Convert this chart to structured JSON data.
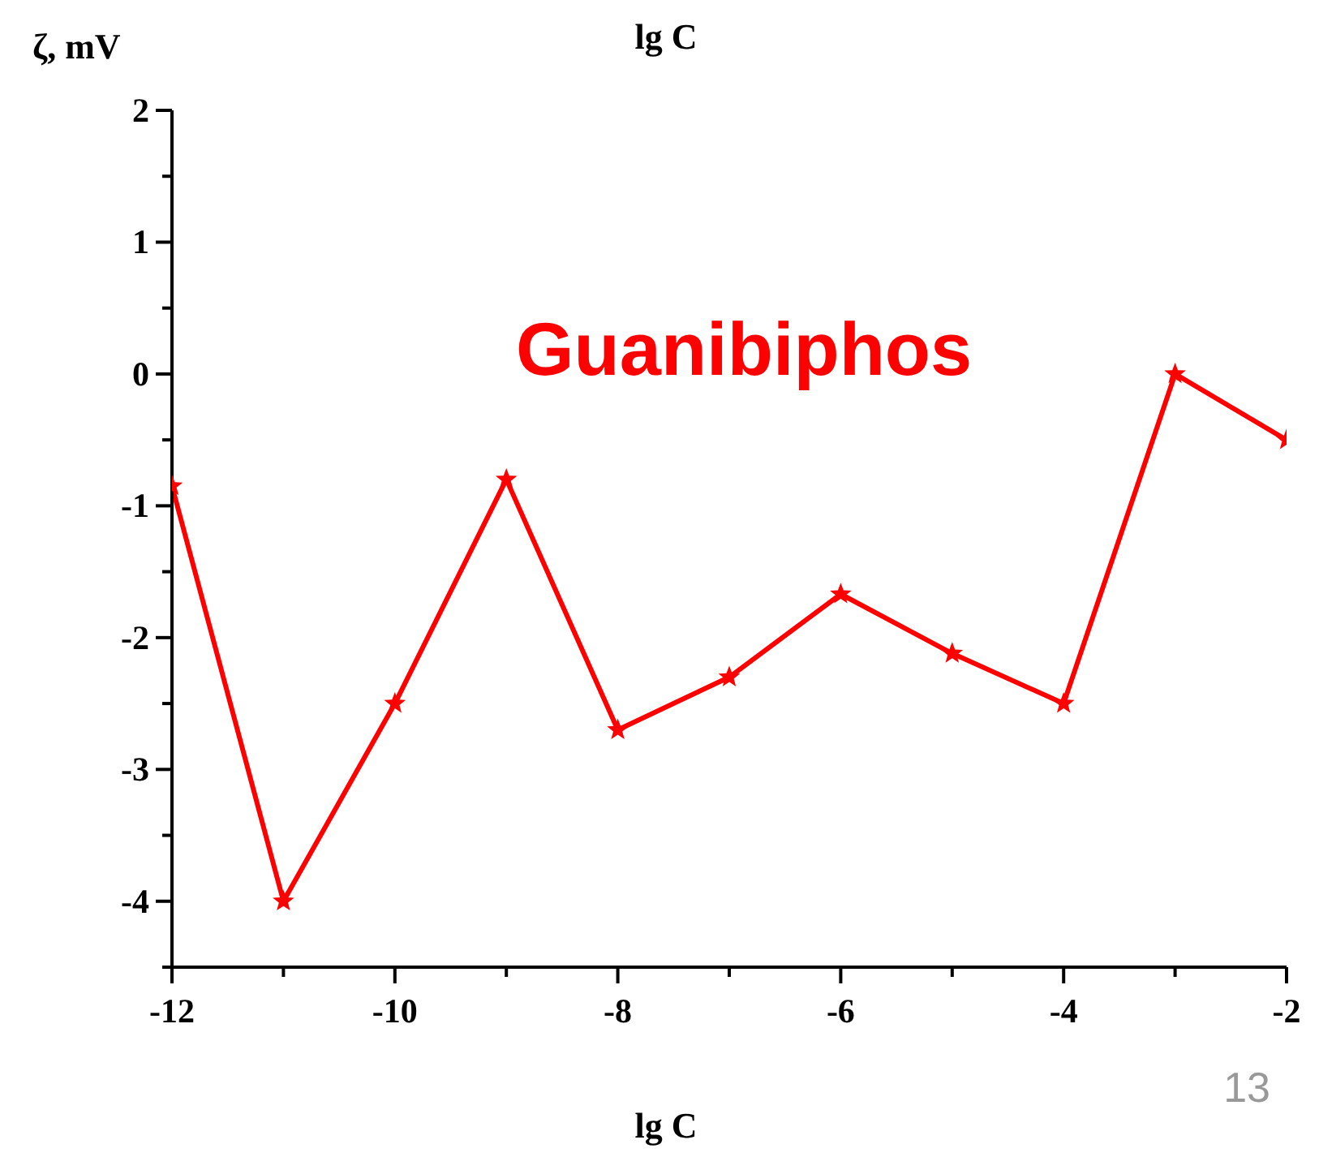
{
  "chart_data": {
    "type": "line",
    "title": "lg C",
    "xlabel": "lg C",
    "ylabel": "ζ, mV",
    "annotations": [
      "Guanibiphos",
      "13"
    ],
    "x": [
      -12,
      -11,
      -10,
      -9,
      -8,
      -7,
      -6,
      -5,
      -4,
      -3,
      -2
    ],
    "series": [
      {
        "color": "#ff0000",
        "values": [
          -0.85,
          -4,
          -2.5,
          -0.8,
          -2.7,
          -2.3,
          -1.67,
          -2.12,
          -2.5,
          0,
          -0.5
        ]
      }
    ],
    "xlim": [
      -12,
      -2
    ],
    "xticks": [
      -12,
      {
        "value": -11,
        "label": null
      },
      -10,
      {
        "value": -9,
        "label": null
      },
      -8,
      {
        "value": -7,
        "label": null
      },
      -6,
      {
        "value": -5,
        "label": null
      },
      -4,
      {
        "value": -3,
        "label": null
      },
      -2
    ],
    "ylim": [
      -4.5,
      2
    ],
    "yticks": [
      {
        "value": -4.5,
        "label": null
      },
      -4,
      {
        "value": -3.5,
        "label": null
      },
      -3,
      {
        "value": -2.5,
        "label": null
      },
      -2,
      {
        "value": -1.5,
        "label": null
      },
      -1,
      {
        "value": -0.5,
        "label": null
      },
      0,
      {
        "value": 0.5,
        "label": null
      },
      1,
      {
        "value": 1.5,
        "label": null
      },
      2
    ],
    "grid": false,
    "legend": false,
    "marker": "star",
    "line_style": "solid"
  }
}
